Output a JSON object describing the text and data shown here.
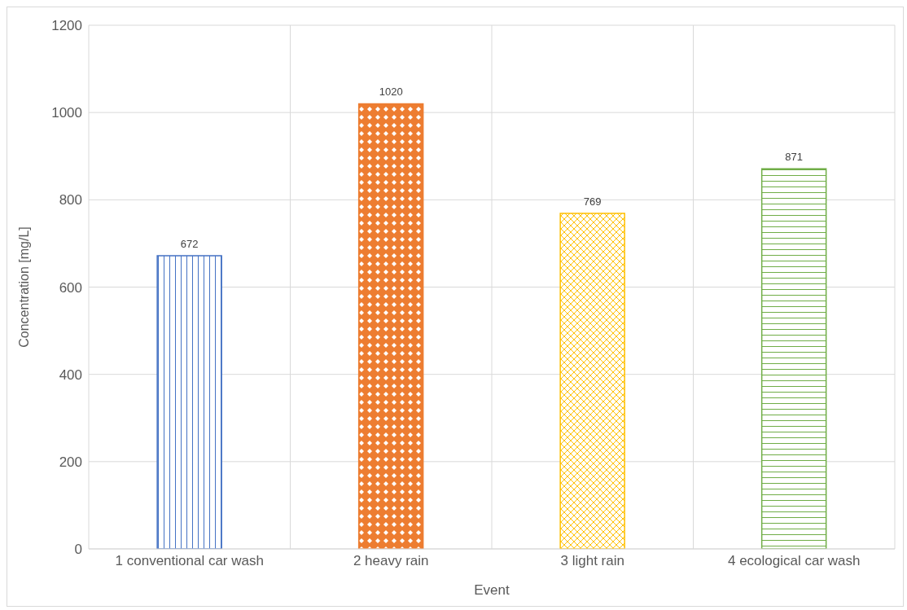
{
  "chart_data": {
    "type": "bar",
    "xlabel": "Event",
    "ylabel": "Concentration  [mg/L]",
    "categories": [
      "1 conventional car wash",
      "2 heavy rain",
      "3 light rain",
      "4 ecological car wash"
    ],
    "values": [
      672,
      1020,
      769,
      871
    ],
    "colors": [
      "#4472c4",
      "#ed7d31",
      "#ffc000",
      "#70ad47"
    ],
    "ylim": [
      0,
      1200
    ],
    "yticks": [
      0,
      200,
      400,
      600,
      800,
      1000,
      1200
    ],
    "grid": true,
    "data_labels": true
  }
}
